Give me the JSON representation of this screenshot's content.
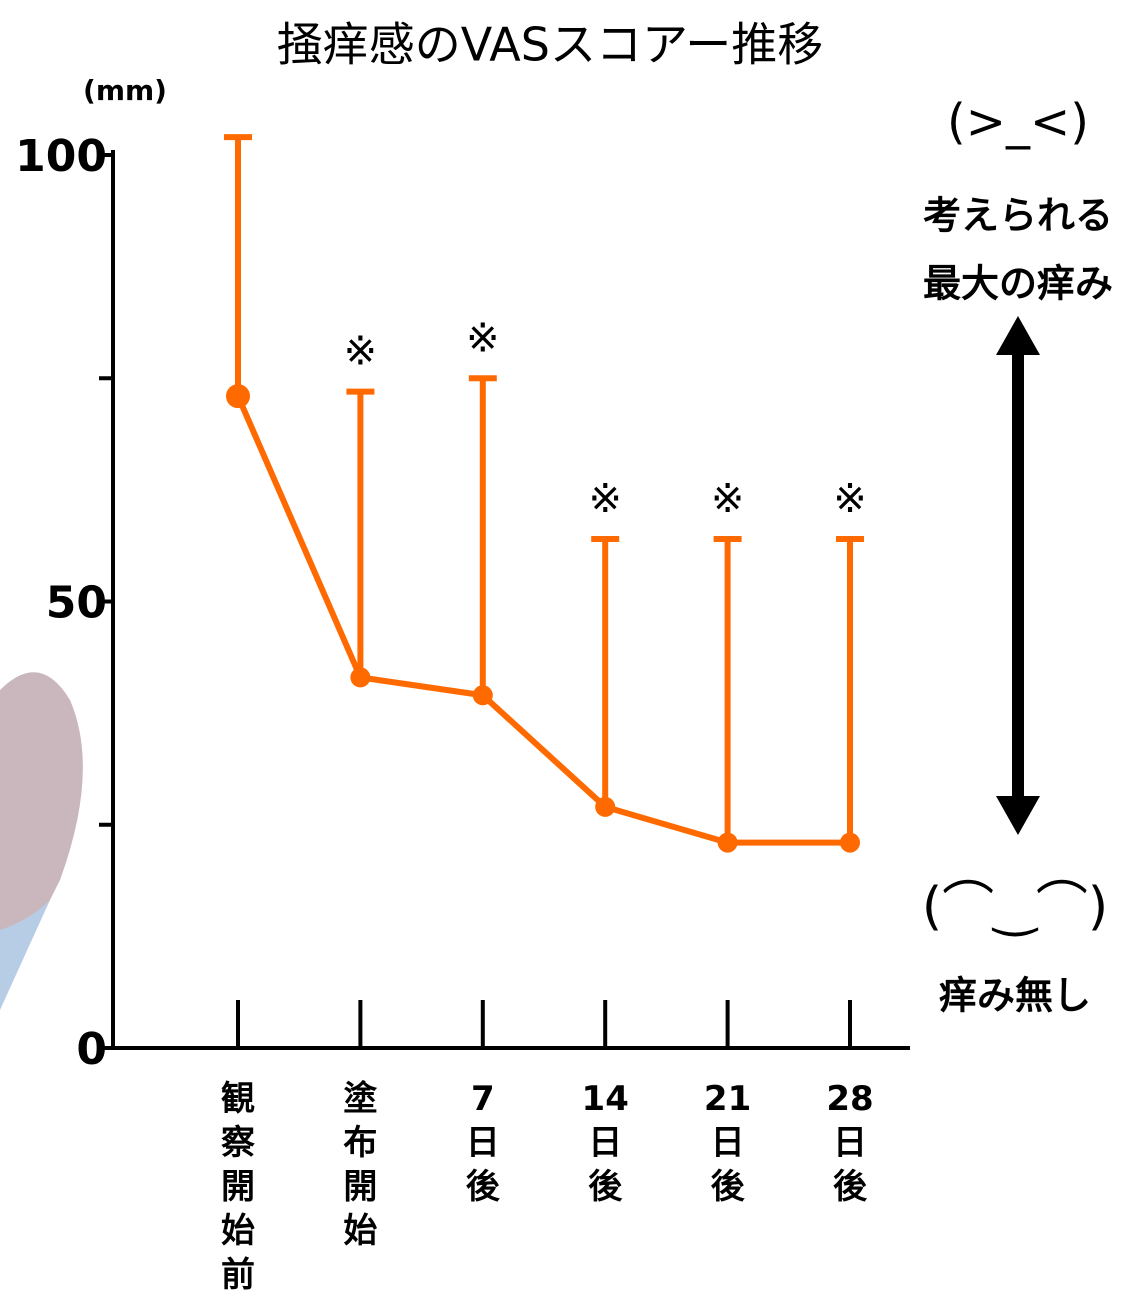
{
  "chart_data": {
    "type": "line",
    "title": "掻痒感のVASスコアー推移",
    "unit_label": "(mm)",
    "categories": [
      "観察開始前",
      "塗布開始",
      "7日後",
      "14日後",
      "21日後",
      "28日後"
    ],
    "series": [
      {
        "color": "#ff6a00",
        "values": [
          73,
          41.5,
          39.5,
          27,
          23,
          23
        ],
        "errors": [
          29,
          32,
          35.5,
          30,
          34,
          34
        ]
      }
    ],
    "significance_labels": [
      null,
      "※",
      "※",
      "※",
      "※",
      "※"
    ],
    "ylim": [
      0,
      100
    ],
    "yticks": [
      0,
      {
        "value": 25,
        "label": null
      },
      50,
      {
        "value": 75,
        "label": null
      },
      100
    ],
    "top_face": "(>_<)",
    "top_label": [
      "考えられる",
      "最大の痒み"
    ],
    "bottom_face": "(⌒‿⌒)",
    "bottom_label": "痒み無し"
  }
}
